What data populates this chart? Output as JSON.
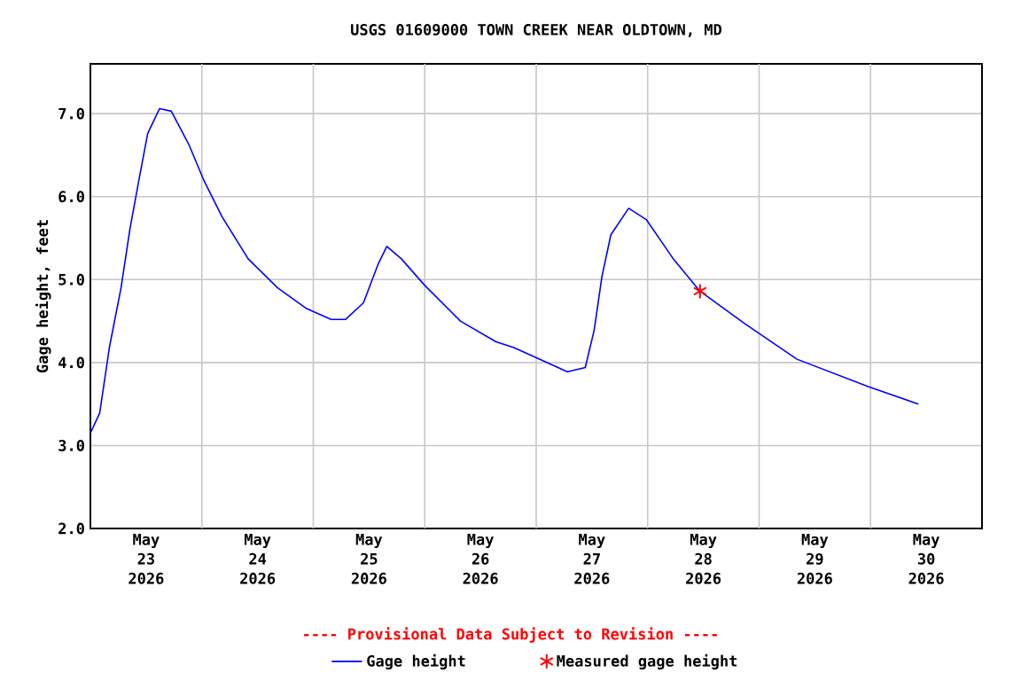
{
  "chart_data": {
    "type": "line",
    "title": "USGS 01609000 TOWN CREEK NEAR OLDTOWN, MD",
    "ylabel": "Gage height, feet",
    "annotations": [
      "---- Provisional Data Subject to Revision ----"
    ],
    "xlim": [
      "2026-05-23T00:00",
      "2026-05-31T00:00"
    ],
    "xticks": [
      {
        "value": "2026-05-23T12:00",
        "label": "May 23 2026"
      },
      {
        "value": "2026-05-24T12:00",
        "label": "May 24 2026"
      },
      {
        "value": "2026-05-25T12:00",
        "label": "May 25 2026"
      },
      {
        "value": "2026-05-26T12:00",
        "label": "May 26 2026"
      },
      {
        "value": "2026-05-27T12:00",
        "label": "May 27 2026"
      },
      {
        "value": "2026-05-28T12:00",
        "label": "May 28 2026"
      },
      {
        "value": "2026-05-29T12:00",
        "label": "May 29 2026"
      },
      {
        "value": "2026-05-30T12:00",
        "label": "May 30 2026"
      },
      {
        "value": "2026-05-24T00:00",
        "label": null
      },
      {
        "value": "2026-05-25T00:00",
        "label": null
      },
      {
        "value": "2026-05-26T00:00",
        "label": null
      },
      {
        "value": "2026-05-27T00:00",
        "label": null
      },
      {
        "value": "2026-05-28T00:00",
        "label": null
      },
      {
        "value": "2026-05-29T00:00",
        "label": null
      },
      {
        "value": "2026-05-30T00:00",
        "label": null
      }
    ],
    "ylim": [
      2,
      7.6
    ],
    "yticks": [
      {
        "value": 2,
        "label": "2.0"
      },
      {
        "value": 3,
        "label": "3.0"
      },
      {
        "value": 4,
        "label": "4.0"
      },
      {
        "value": 5,
        "label": "5.0"
      },
      {
        "value": 6,
        "label": "6.0"
      },
      {
        "value": 7,
        "label": "7.0"
      }
    ],
    "grid": true,
    "legend": "bottom",
    "series": [
      {
        "name": "Gage height",
        "color": "#0000ff",
        "marker": "none",
        "line_style": "solid",
        "x": [
          "2026-05-23T00:00",
          "2026-05-23T02:00",
          "2026-05-23T04:05",
          "2026-05-23T06:36",
          "2026-05-23T08:31",
          "2026-05-23T10:25",
          "2026-05-23T12:20",
          "2026-05-23T14:53",
          "2026-05-23T17:25",
          "2026-05-23T21:16",
          "2026-05-24T00:29",
          "2026-05-24T04:19",
          "2026-05-24T09:58",
          "2026-05-24T16:19",
          "2026-05-24T22:34",
          "2026-05-25T03:50",
          "2026-05-25T06:58",
          "2026-05-25T10:48",
          "2026-05-25T13:55",
          "2026-05-25T15:50",
          "2026-05-25T18:58",
          "2026-05-26T00:00",
          "2026-05-26T07:41",
          "2026-05-26T15:22",
          "2026-05-26T19:12",
          "2026-05-27T06:43",
          "2026-05-27T10:34",
          "2026-05-27T12:29",
          "2026-05-27T14:10",
          "2026-05-27T16:05",
          "2026-05-27T19:55",
          "2026-05-27T23:46",
          "2026-05-28T05:31",
          "2026-05-28T11:17",
          "2026-05-28T20:53",
          "2026-05-29T08:10",
          "2026-05-29T23:31",
          "2026-05-30T10:19"
        ],
        "values": [
          3.15,
          3.39,
          4.18,
          4.9,
          5.61,
          6.19,
          6.76,
          7.06,
          7.03,
          6.62,
          6.19,
          5.76,
          5.25,
          4.9,
          4.65,
          4.52,
          4.52,
          4.72,
          5.18,
          5.4,
          5.25,
          4.93,
          4.5,
          4.25,
          4.18,
          3.89,
          3.94,
          4.39,
          5.04,
          5.54,
          5.86,
          5.72,
          5.25,
          4.86,
          4.47,
          4.04,
          3.71,
          3.5
        ]
      },
      {
        "name": "Measured gage height",
        "type": "scatter",
        "color": "#ff0000",
        "marker": "cross",
        "x": [
          "2026-05-28T11:17"
        ],
        "values": [
          4.86
        ]
      }
    ]
  }
}
